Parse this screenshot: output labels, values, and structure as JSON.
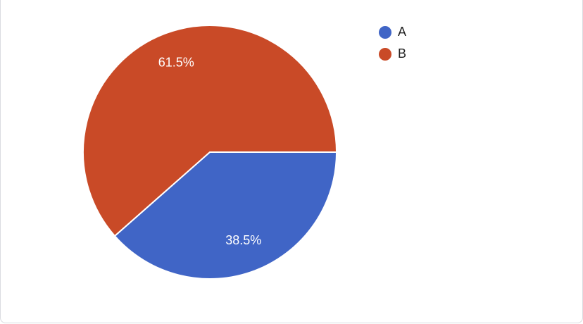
{
  "chart_data": {
    "type": "pie",
    "categories": [
      "A",
      "B"
    ],
    "values": [
      38.5,
      61.5
    ],
    "value_labels": [
      "38.5%",
      "61.5%"
    ],
    "colors": [
      "#4065c6",
      "#c94a27"
    ],
    "legend": "top-right"
  }
}
